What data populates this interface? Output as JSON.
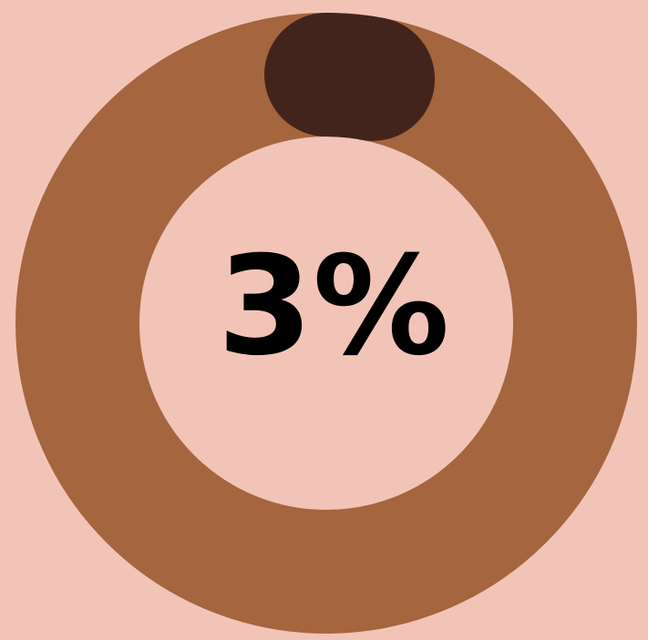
{
  "chart_data": {
    "type": "pie",
    "variant": "donut-progress",
    "values": [
      3,
      97
    ],
    "categories": [
      "",
      ""
    ],
    "center_label": "3%",
    "progress_percent": 3
  },
  "colors": {
    "background": "#f2c4b8",
    "track": "#a5653e",
    "progress": "#42241c",
    "label": "#000000"
  }
}
